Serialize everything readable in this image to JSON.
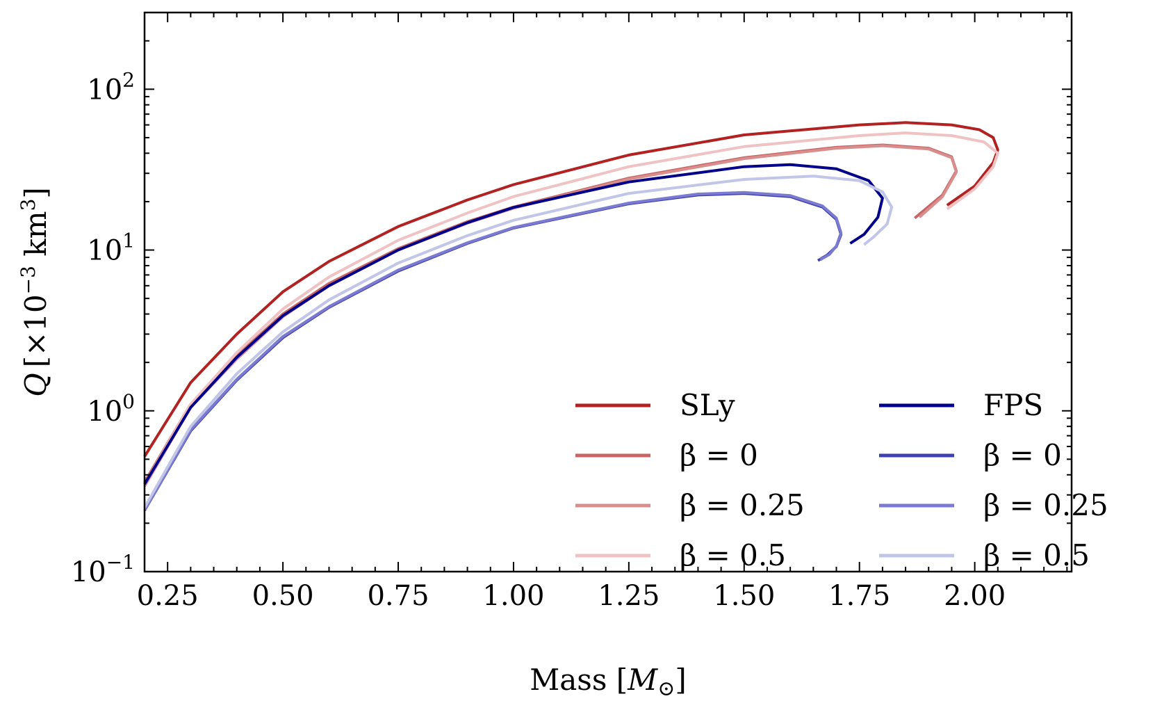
{
  "chart_data": {
    "type": "line",
    "title": "",
    "xlabel": {
      "prefix": "Mass ",
      "math_open": "[",
      "math_var": "M",
      "math_sub": "⊙",
      "math_close": "]"
    },
    "ylabel": {
      "var": "Q",
      "unit_open": "[",
      "unit_times": "×10",
      "unit_exp": "−3",
      "unit_km": " km",
      "unit_km_exp": "3",
      "unit_close": "]"
    },
    "xlim": [
      0.2,
      2.21
    ],
    "ylim": [
      0.1,
      300
    ],
    "yscale": "log",
    "xticks": [
      {
        "value": 0.25,
        "label": "0.25"
      },
      {
        "value": 0.5,
        "label": "0.50"
      },
      {
        "value": 0.75,
        "label": "0.75"
      },
      {
        "value": 1.0,
        "label": "1.00"
      },
      {
        "value": 1.25,
        "label": "1.25"
      },
      {
        "value": 1.5,
        "label": "1.50"
      },
      {
        "value": 1.75,
        "label": "1.75"
      },
      {
        "value": 2.0,
        "label": "2.00"
      }
    ],
    "yticks": [
      {
        "value": 0.1,
        "base": "10",
        "exp": "−1"
      },
      {
        "value": 1,
        "base": "10",
        "exp": "0"
      },
      {
        "value": 10,
        "base": "10",
        "exp": "1"
      },
      {
        "value": 100,
        "base": "10",
        "exp": "2"
      }
    ],
    "legend_position": "lower-right",
    "series": [
      {
        "name": "SLy",
        "color": "#b22222",
        "width": 4,
        "x": [
          0.2,
          0.3,
          0.4,
          0.5,
          0.6,
          0.75,
          0.9,
          1.0,
          1.25,
          1.5,
          1.75,
          1.85,
          1.95,
          2.01,
          2.04,
          2.05,
          2.04,
          2.0,
          1.94
        ],
        "y": [
          0.52,
          1.5,
          3.0,
          5.5,
          8.5,
          14.0,
          20.5,
          25.5,
          39.0,
          52.0,
          60.0,
          62.0,
          60.0,
          56.0,
          50.0,
          42.0,
          35.0,
          25.0,
          19.0
        ]
      },
      {
        "name": "β = 0",
        "color": "#c96464",
        "width": 4,
        "x": [
          0.2,
          0.3,
          0.4,
          0.5,
          0.6,
          0.75,
          0.9,
          1.0,
          1.25,
          1.5,
          1.7,
          1.8,
          1.9,
          1.95,
          1.96,
          1.93,
          1.87
        ],
        "y": [
          0.36,
          1.1,
          2.2,
          4.0,
          6.2,
          10.2,
          15.0,
          18.5,
          28.0,
          37.5,
          43.5,
          45.0,
          43.0,
          38.0,
          31.0,
          22.0,
          15.8
        ]
      },
      {
        "name": "β = 0.25",
        "color": "#d98e8e",
        "width": 4,
        "x": [
          0.2,
          0.3,
          0.4,
          0.5,
          0.6,
          0.75,
          0.9,
          1.0,
          1.25,
          1.5,
          1.7,
          1.8,
          1.9,
          1.95,
          1.96,
          1.93,
          1.88
        ],
        "y": [
          0.34,
          1.05,
          2.1,
          3.85,
          6.0,
          10.0,
          14.7,
          18.2,
          27.6,
          37.0,
          43.0,
          44.5,
          42.5,
          37.5,
          30.5,
          21.5,
          16.0
        ]
      },
      {
        "name": "β = 0.5",
        "color": "#efc3c3",
        "width": 4,
        "x": [
          0.2,
          0.3,
          0.4,
          0.5,
          0.6,
          0.75,
          0.9,
          1.0,
          1.25,
          1.5,
          1.75,
          1.85,
          1.95,
          2.02,
          2.05,
          2.04,
          2.0,
          1.94
        ],
        "y": [
          0.35,
          1.1,
          2.3,
          4.3,
          6.8,
          11.5,
          17.0,
          21.5,
          33.0,
          44.0,
          51.5,
          53.5,
          51.5,
          47.0,
          40.0,
          33.0,
          24.0,
          18.0
        ]
      },
      {
        "name": "FPS",
        "color": "#00008b",
        "width": 4,
        "x": [
          0.2,
          0.3,
          0.4,
          0.5,
          0.6,
          0.75,
          0.9,
          1.0,
          1.25,
          1.5,
          1.6,
          1.7,
          1.77,
          1.8,
          1.79,
          1.76,
          1.73
        ],
        "y": [
          0.35,
          1.05,
          2.15,
          3.9,
          6.0,
          10.0,
          14.8,
          18.4,
          26.5,
          33.0,
          34.0,
          32.0,
          27.0,
          21.0,
          16.0,
          12.5,
          11.0
        ]
      },
      {
        "name": "β = 0",
        "color": "#3f3fb1",
        "width": 4,
        "x": [
          0.2,
          0.3,
          0.4,
          0.5,
          0.6,
          0.75,
          0.9,
          1.0,
          1.25,
          1.4,
          1.5,
          1.6,
          1.67,
          1.7,
          1.71,
          1.7,
          1.68,
          1.66
        ],
        "y": [
          0.24,
          0.75,
          1.55,
          2.85,
          4.4,
          7.4,
          11.0,
          13.7,
          19.4,
          22.0,
          22.5,
          21.5,
          18.5,
          15.5,
          12.5,
          10.5,
          9.3,
          8.6
        ]
      },
      {
        "name": "β = 0.25",
        "color": "#7a7ad0",
        "width": 4,
        "x": [
          0.2,
          0.3,
          0.4,
          0.5,
          0.6,
          0.75,
          0.9,
          1.0,
          1.25,
          1.4,
          1.5,
          1.6,
          1.67,
          1.7,
          1.71,
          1.7,
          1.685,
          1.665
        ],
        "y": [
          0.24,
          0.76,
          1.57,
          2.9,
          4.45,
          7.5,
          11.1,
          13.8,
          19.6,
          22.3,
          22.8,
          21.8,
          18.8,
          15.8,
          12.8,
          10.6,
          9.4,
          8.7
        ]
      },
      {
        "name": "β = 0.5",
        "color": "#c1c5e8",
        "width": 4,
        "x": [
          0.2,
          0.3,
          0.4,
          0.5,
          0.6,
          0.75,
          0.9,
          1.0,
          1.25,
          1.5,
          1.65,
          1.75,
          1.8,
          1.82,
          1.81,
          1.78,
          1.76
        ],
        "y": [
          0.25,
          0.8,
          1.7,
          3.1,
          4.9,
          8.3,
          12.3,
          15.3,
          22.5,
          27.5,
          28.8,
          27.0,
          23.0,
          18.5,
          14.5,
          12.0,
          10.8
        ]
      }
    ]
  }
}
